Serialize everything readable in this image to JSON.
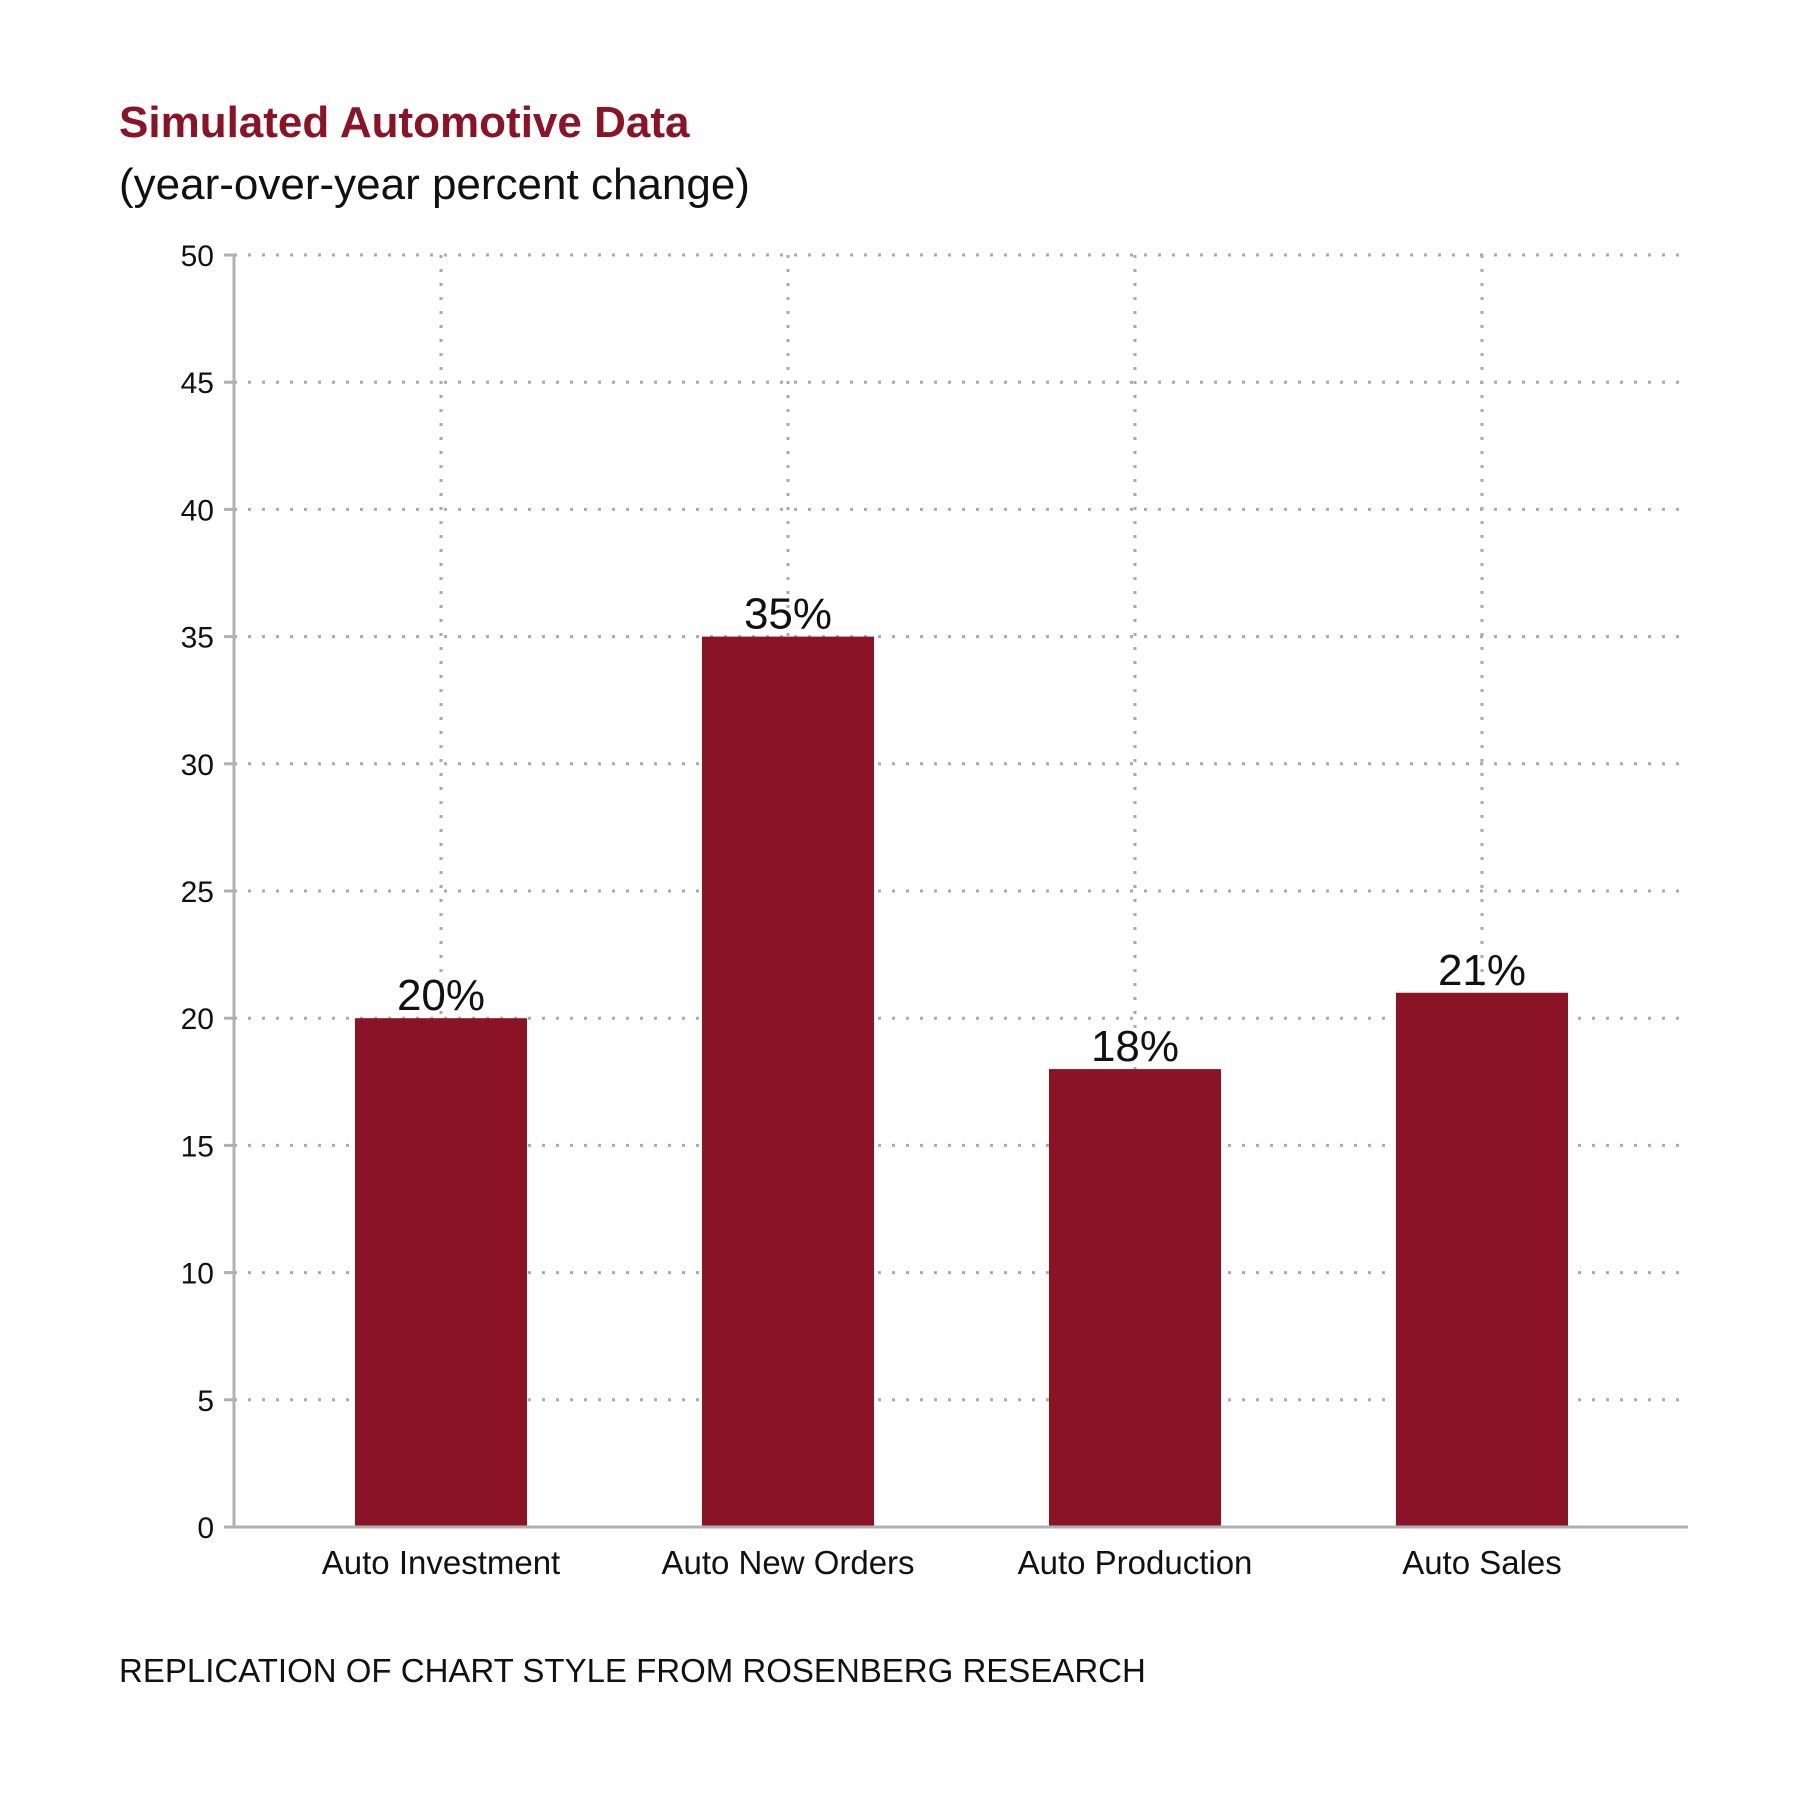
{
  "title": "Simulated Automotive Data",
  "subtitle": "(year-over-year percent change)",
  "footer": "REPLICATION OF CHART STYLE FROM ROSENBERG RESEARCH",
  "colors": {
    "bar": "#8b1326",
    "title": "#8b1326",
    "axis": "#b0b0b0",
    "grid": "#aaaaaa"
  },
  "chart_data": {
    "type": "bar",
    "title": "Simulated Automotive Data",
    "subtitle": "(year-over-year percent change)",
    "categories": [
      "Auto Investment",
      "Auto New Orders",
      "Auto Production",
      "Auto Sales"
    ],
    "values": [
      20,
      35,
      18,
      21
    ],
    "data_labels": [
      "20%",
      "35%",
      "18%",
      "21%"
    ],
    "xlabel": "",
    "ylabel": "",
    "ylim": [
      0,
      50
    ],
    "yticks": [
      0,
      5,
      10,
      15,
      20,
      25,
      30,
      35,
      40,
      45,
      50
    ],
    "grid": true,
    "grid_style": "dotted",
    "legend": "none"
  }
}
